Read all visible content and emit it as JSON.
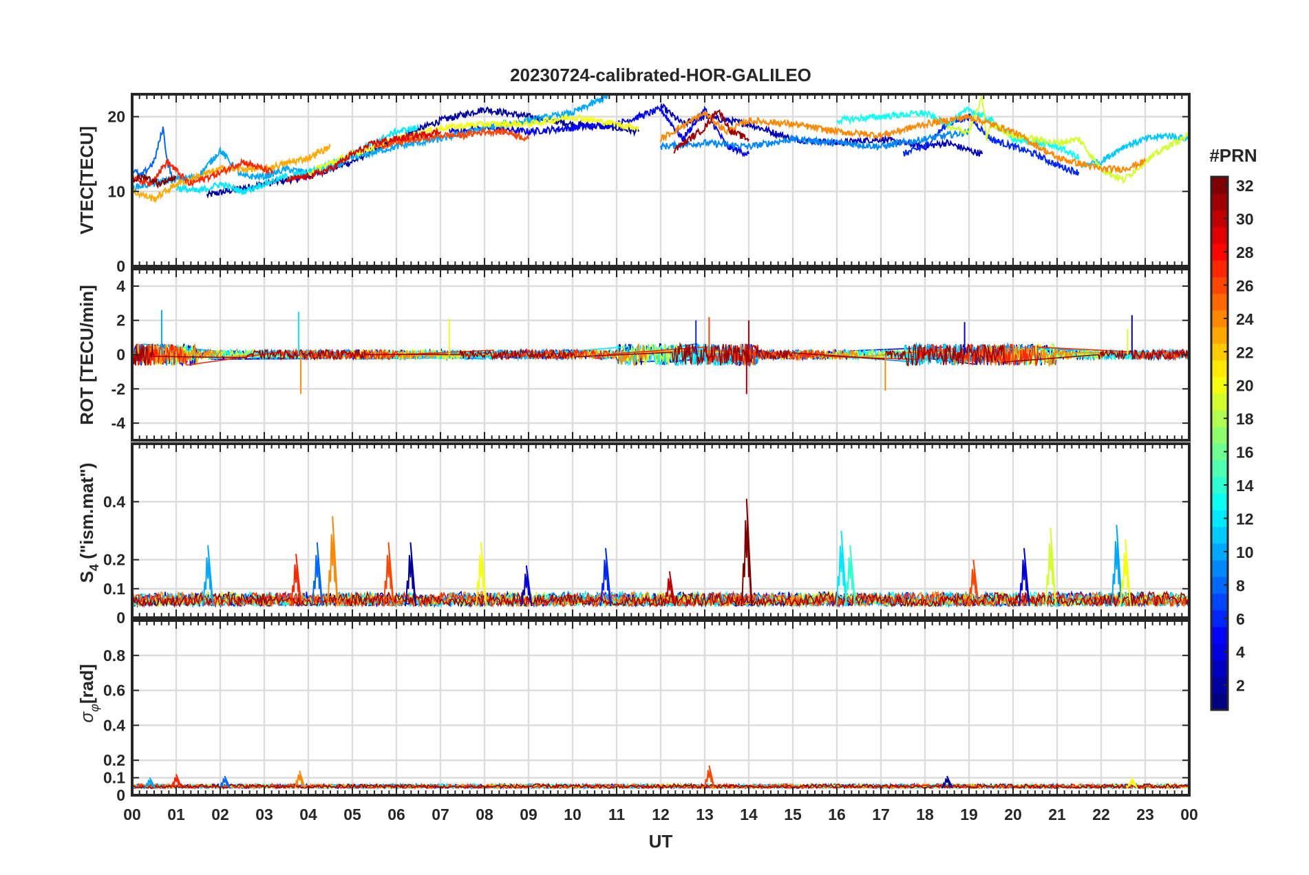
{
  "chart_data": {
    "type": "line",
    "title": "20230724-calibrated-HOR-GALILEO",
    "xlabel": "UT",
    "x_tick_labels": [
      "00",
      "01",
      "02",
      "03",
      "04",
      "05",
      "06",
      "07",
      "08",
      "09",
      "10",
      "11",
      "12",
      "13",
      "14",
      "15",
      "16",
      "17",
      "18",
      "19",
      "20",
      "21",
      "22",
      "23",
      "00"
    ],
    "xlim": [
      0,
      24
    ],
    "colorbar": {
      "label": "#PRN",
      "range": [
        1,
        32
      ],
      "tick_labels": [
        "2",
        "4",
        "6",
        "8",
        "10",
        "12",
        "14",
        "16",
        "18",
        "20",
        "22",
        "24",
        "26",
        "28",
        "30",
        "32"
      ],
      "colormap": "jet"
    },
    "panels": [
      {
        "name": "vtec",
        "ylabel": "VTEC[TECU]",
        "ylim": [
          0,
          23
        ],
        "yticks": [
          0,
          10,
          20
        ],
        "ytick_labels": [
          "0",
          "10",
          "20"
        ],
        "series": [
          {
            "prn": 2,
            "x": [
              1.7,
              3.0,
              4.0,
              5.0,
              6.0,
              7.0,
              8.0,
              9.0,
              10.0,
              11.0,
              11.5
            ],
            "values": [
              9.5,
              11.0,
              12.0,
              14.0,
              17.0,
              19.5,
              21.0,
              20.0,
              19.0,
              18.5,
              18.0
            ]
          },
          {
            "prn": 3,
            "x": [
              12.0,
              12.5,
              13.0,
              14.0,
              15.0,
              16.0,
              17.0,
              18.0,
              18.5,
              19.0,
              19.3
            ],
            "values": [
              21.5,
              19.0,
              20.0,
              19.0,
              17.0,
              16.5,
              17.0,
              16.0,
              16.5,
              15.5,
              15.0
            ]
          },
          {
            "prn": 5,
            "x": [
              7.2,
              8.0,
              9.0,
              10.0,
              11.0,
              12.0,
              12.5,
              13.0,
              13.5,
              14.0
            ],
            "values": [
              18.0,
              18.5,
              18.0,
              18.5,
              19.0,
              21.0,
              17.0,
              21.0,
              16.0,
              15.0
            ]
          },
          {
            "prn": 6,
            "x": [
              17.5,
              18.0,
              18.5,
              19.0,
              19.5,
              20.0,
              20.5,
              21.0,
              21.5
            ],
            "values": [
              15.0,
              16.0,
              19.0,
              20.0,
              17.0,
              16.0,
              15.0,
              13.5,
              12.5
            ]
          },
          {
            "prn": 8,
            "x": [
              0.0,
              0.2,
              0.5,
              0.7,
              0.8,
              0.9
            ],
            "values": [
              13.0,
              12.0,
              14.0,
              18.5,
              14.0,
              12.0
            ]
          },
          {
            "prn": 9,
            "x": [
              12.0,
              13.0,
              14.0,
              15.0,
              16.0,
              17.0,
              18.0,
              19.0
            ],
            "values": [
              16.0,
              16.5,
              16.0,
              17.0,
              16.5,
              16.0,
              17.0,
              18.0
            ]
          },
          {
            "prn": 10,
            "x": [
              0.0,
              0.8,
              1.5,
              2.0,
              2.5,
              3.0,
              3.5,
              4.0,
              4.5,
              5.0,
              6.0,
              7.0,
              8.0,
              9.0,
              10.0,
              10.9
            ],
            "values": [
              10.5,
              11.5,
              12.0,
              15.5,
              12.0,
              12.0,
              13.0,
              12.5,
              13.0,
              14.5,
              16.0,
              17.0,
              18.5,
              19.5,
              20.5,
              23.0
            ]
          },
          {
            "prn": 11,
            "x": [
              21.5,
              22.0,
              22.5,
              23.0,
              23.5,
              24.0
            ],
            "values": [
              13.5,
              14.0,
              16.0,
              17.0,
              17.5,
              17.0
            ]
          },
          {
            "prn": 12,
            "x": [
              1.0,
              1.5,
              2.0,
              2.5,
              3.0,
              3.5,
              4.0,
              5.0,
              6.0,
              6.5
            ],
            "values": [
              10.5,
              10.0,
              11.0,
              10.0,
              11.0,
              12.0,
              12.5,
              15.0,
              18.0,
              18.5
            ]
          },
          {
            "prn": 13,
            "x": [
              16.0,
              17.0,
              18.0,
              18.5,
              19.0,
              19.5,
              20.0,
              21.0,
              21.5
            ],
            "values": [
              19.5,
              20.0,
              20.5,
              19.0,
              21.0,
              19.5,
              17.0,
              16.0,
              14.5
            ]
          },
          {
            "prn": 19,
            "x": [
              18.5,
              19.0,
              19.3,
              19.4,
              19.5,
              20.0,
              21.0,
              21.5,
              22.0,
              22.5,
              23.0,
              23.5,
              24.0
            ],
            "values": [
              18.5,
              18.0,
              22.5,
              17.0,
              19.0,
              17.5,
              16.5,
              17.0,
              13.0,
              11.5,
              14.0,
              16.0,
              17.5
            ]
          },
          {
            "prn": 20,
            "x": [
              4.0,
              5.0,
              6.0,
              7.0,
              8.0,
              9.0,
              10.0,
              11.0,
              11.5
            ],
            "values": [
              12.5,
              15.0,
              17.0,
              18.5,
              19.0,
              19.0,
              20.0,
              19.0,
              18.5
            ]
          },
          {
            "prn": 23,
            "x": [
              0.0,
              0.5,
              1.0,
              1.5,
              2.0,
              3.0,
              4.0,
              4.5
            ],
            "values": [
              10.0,
              9.0,
              11.0,
              12.0,
              13.0,
              13.0,
              14.5,
              16.0
            ]
          },
          {
            "prn": 24,
            "x": [
              12.0,
              13.0,
              13.5,
              14.0,
              15.0,
              16.0,
              17.0,
              18.0,
              19.0,
              20.0,
              21.0,
              22.0,
              22.5,
              23.0
            ],
            "values": [
              17.0,
              20.5,
              18.0,
              19.5,
              19.0,
              18.0,
              17.5,
              19.0,
              20.0,
              18.0,
              14.5,
              13.0,
              13.0,
              14.0
            ]
          },
          {
            "prn": 26,
            "x": [
              5.5,
              6.5,
              7.0,
              7.5,
              8.0,
              8.5,
              9.0
            ],
            "values": [
              16.0,
              17.0,
              17.5,
              17.5,
              18.0,
              18.0,
              17.0
            ]
          },
          {
            "prn": 27,
            "x": [
              0.0,
              0.4,
              0.8,
              1.3,
              2.0,
              2.5,
              3.2
            ],
            "values": [
              12.0,
              11.0,
              14.0,
              11.0,
              12.5,
              14.0,
              12.5
            ]
          },
          {
            "prn": 29,
            "x": [
              3.5,
              4.0,
              4.5,
              5.0,
              5.5,
              6.0,
              6.5,
              7.0
            ],
            "values": [
              11.5,
              12.0,
              13.0,
              15.0,
              16.5,
              17.0,
              17.5,
              18.0
            ]
          },
          {
            "prn": 31,
            "x": [
              12.3,
              13.0,
              13.3,
              13.6,
              14.0
            ],
            "values": [
              15.5,
              18.5,
              21.0,
              18.0,
              17.0
            ]
          },
          {
            "prn": 32,
            "x": [
              0.0,
              0.3,
              0.6,
              1.0
            ],
            "values": [
              11.5,
              12.0,
              11.0,
              12.0
            ]
          }
        ]
      },
      {
        "name": "rot",
        "ylabel": "ROT [TECU/min]",
        "ylim": [
          -5,
          5
        ],
        "yticks": [
          -4,
          -2,
          0,
          2,
          4
        ],
        "ytick_labels": [
          "-4",
          "-2",
          "0",
          "2",
          "4"
        ],
        "noise": {
          "type": "noisy",
          "x_range": [
            0,
            24
          ],
          "baseline": 0.0,
          "typical_amplitude": 0.8,
          "peak_amplitude": 2.5
        },
        "annotated_spikes": [
          {
            "x": 0.67,
            "value": 2.6
          },
          {
            "x": 3.78,
            "value": 2.5
          },
          {
            "x": 3.83,
            "value": -2.3
          },
          {
            "x": 7.2,
            "value": 2.1
          },
          {
            "x": 12.8,
            "value": 2.0
          },
          {
            "x": 13.1,
            "value": 2.2
          },
          {
            "x": 13.95,
            "value": -2.3
          },
          {
            "x": 14.0,
            "value": 2.0
          },
          {
            "x": 17.1,
            "value": -2.1
          },
          {
            "x": 18.9,
            "value": 1.9
          },
          {
            "x": 22.7,
            "value": 2.3
          },
          {
            "x": 22.6,
            "value": 1.5
          }
        ]
      },
      {
        "name": "s4",
        "ylabel": "S4 (\"ism.mat\")",
        "ylim": [
          0,
          0.6
        ],
        "yticks": [
          0,
          0.1,
          0.2,
          0.4
        ],
        "ytick_labels": [
          "0",
          "0.1",
          "0.2",
          "0.4"
        ],
        "baseline": 0.04,
        "annotated_peaks": [
          {
            "x": 1.72,
            "value": 0.25
          },
          {
            "x": 3.72,
            "value": 0.22
          },
          {
            "x": 4.2,
            "value": 0.26
          },
          {
            "x": 4.55,
            "value": 0.35
          },
          {
            "x": 5.82,
            "value": 0.26
          },
          {
            "x": 6.32,
            "value": 0.26
          },
          {
            "x": 7.92,
            "value": 0.26
          },
          {
            "x": 8.95,
            "value": 0.18
          },
          {
            "x": 10.75,
            "value": 0.24
          },
          {
            "x": 12.2,
            "value": 0.16
          },
          {
            "x": 13.95,
            "value": 0.41
          },
          {
            "x": 16.1,
            "value": 0.3
          },
          {
            "x": 16.3,
            "value": 0.25
          },
          {
            "x": 19.1,
            "value": 0.2
          },
          {
            "x": 20.25,
            "value": 0.24
          },
          {
            "x": 20.85,
            "value": 0.31
          },
          {
            "x": 22.35,
            "value": 0.32
          },
          {
            "x": 22.55,
            "value": 0.27
          }
        ]
      },
      {
        "name": "sigma-phi",
        "ylabel": "σφ[rad]",
        "ylim": [
          0,
          1
        ],
        "yticks": [
          0,
          0.1,
          0.2,
          0.4,
          0.6,
          0.8
        ],
        "ytick_labels": [
          "0",
          "0.1",
          "0.2",
          "0.4",
          "0.6",
          "0.8"
        ],
        "baseline": 0.04,
        "annotated_peaks": [
          {
            "x": 0.4,
            "value": 0.1
          },
          {
            "x": 1.0,
            "value": 0.12
          },
          {
            "x": 2.1,
            "value": 0.11
          },
          {
            "x": 3.8,
            "value": 0.14
          },
          {
            "x": 13.1,
            "value": 0.17
          },
          {
            "x": 18.5,
            "value": 0.11
          },
          {
            "x": 22.7,
            "value": 0.1
          }
        ]
      }
    ]
  }
}
